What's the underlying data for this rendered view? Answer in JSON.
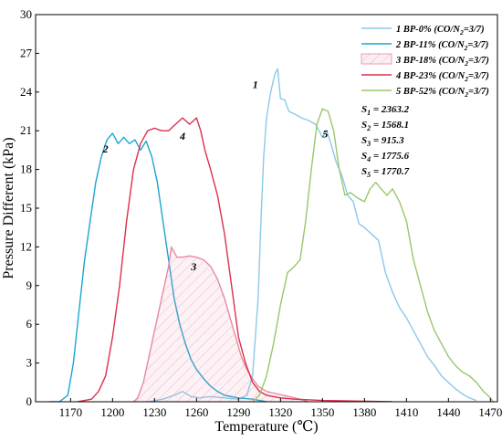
{
  "chart_data": {
    "type": "line",
    "xlabel": "Temperature (℃)",
    "ylabel": "Pressure Different (kPa)",
    "xlim": [
      1145,
      1475
    ],
    "ylim": [
      0,
      30
    ],
    "x_ticks": [
      1170,
      1200,
      1230,
      1260,
      1290,
      1320,
      1350,
      1380,
      1410,
      1440,
      1470
    ],
    "y_ticks": [
      0,
      3,
      6,
      9,
      12,
      15,
      18,
      21,
      24,
      27,
      30
    ],
    "grid": false,
    "legend_position": "top-right",
    "series": [
      {
        "name": "1 BP-0% (CO/N2=3/7)",
        "legend_label": "1 BP-0% (CO/N",
        "legend_sub": "2",
        "legend_suffix": "=3/7)",
        "peak_label": "1",
        "peak_label_at": [
          1302,
          24.3
        ],
        "color": "#8cc9e8",
        "filled": false,
        "points": [
          [
            1226,
            0
          ],
          [
            1236,
            0.2
          ],
          [
            1244,
            0.5
          ],
          [
            1250,
            0.8
          ],
          [
            1256,
            0.4
          ],
          [
            1262,
            0.3
          ],
          [
            1270,
            0.4
          ],
          [
            1280,
            0.3
          ],
          [
            1290,
            0.2
          ],
          [
            1296,
            0.5
          ],
          [
            1300,
            2
          ],
          [
            1304,
            8
          ],
          [
            1306,
            14
          ],
          [
            1308,
            19
          ],
          [
            1310,
            22
          ],
          [
            1313,
            24
          ],
          [
            1316,
            25.4
          ],
          [
            1318,
            25.8
          ],
          [
            1320,
            23.5
          ],
          [
            1323,
            23.4
          ],
          [
            1326,
            22.5
          ],
          [
            1330,
            22.3
          ],
          [
            1335,
            22
          ],
          [
            1340,
            21.8
          ],
          [
            1345,
            21.5
          ],
          [
            1350,
            20.5
          ],
          [
            1353,
            21
          ],
          [
            1356,
            20
          ],
          [
            1360,
            18.5
          ],
          [
            1364,
            17.5
          ],
          [
            1368,
            16
          ],
          [
            1372,
            15.5
          ],
          [
            1376,
            13.8
          ],
          [
            1380,
            13.5
          ],
          [
            1385,
            13
          ],
          [
            1390,
            12.5
          ],
          [
            1395,
            10
          ],
          [
            1400,
            8.5
          ],
          [
            1405,
            7.3
          ],
          [
            1410,
            6.5
          ],
          [
            1415,
            5.5
          ],
          [
            1420,
            4.5
          ],
          [
            1425,
            3.5
          ],
          [
            1430,
            2.8
          ],
          [
            1435,
            2
          ],
          [
            1440,
            1.5
          ],
          [
            1445,
            1
          ],
          [
            1450,
            0.6
          ],
          [
            1455,
            0.3
          ],
          [
            1460,
            0.1
          ]
        ]
      },
      {
        "name": "2 BP-11% (CO/N2=3/7)",
        "legend_label": "2 BP-11% (CO/N",
        "legend_sub": "2",
        "legend_suffix": "=3/7)",
        "peak_label": "2",
        "peak_label_at": [
          1195,
          19.3
        ],
        "color": "#1aa5d2",
        "filled": false,
        "points": [
          [
            1155,
            0
          ],
          [
            1162,
            0
          ],
          [
            1168,
            0.5
          ],
          [
            1172,
            3
          ],
          [
            1176,
            7
          ],
          [
            1180,
            11
          ],
          [
            1184,
            14
          ],
          [
            1188,
            17
          ],
          [
            1192,
            19
          ],
          [
            1196,
            20.3
          ],
          [
            1200,
            20.8
          ],
          [
            1204,
            20
          ],
          [
            1208,
            20.5
          ],
          [
            1212,
            20
          ],
          [
            1216,
            20.3
          ],
          [
            1220,
            19.5
          ],
          [
            1224,
            20.2
          ],
          [
            1228,
            19
          ],
          [
            1232,
            17
          ],
          [
            1236,
            14
          ],
          [
            1240,
            11
          ],
          [
            1244,
            8
          ],
          [
            1248,
            6
          ],
          [
            1252,
            4.5
          ],
          [
            1256,
            3.3
          ],
          [
            1260,
            2.5
          ],
          [
            1265,
            1.8
          ],
          [
            1270,
            1.2
          ],
          [
            1275,
            0.8
          ],
          [
            1280,
            0.5
          ],
          [
            1290,
            0.3
          ],
          [
            1300,
            0.2
          ],
          [
            1310,
            0
          ]
        ]
      },
      {
        "name": "3 BP-18% (CO/N2=3/7)",
        "legend_label": "3 BP-18% (CO/N",
        "legend_sub": "2",
        "legend_suffix": "=3/7)",
        "peak_label": "3",
        "peak_label_at": [
          1258,
          10.2
        ],
        "color": "#e68aa4",
        "filled": true,
        "points": [
          [
            1215,
            0
          ],
          [
            1218,
            0.3
          ],
          [
            1222,
            1.5
          ],
          [
            1226,
            3.5
          ],
          [
            1230,
            5.5
          ],
          [
            1235,
            8
          ],
          [
            1240,
            10.5
          ],
          [
            1242,
            12
          ],
          [
            1246,
            11.2
          ],
          [
            1250,
            11.2
          ],
          [
            1255,
            11.3
          ],
          [
            1260,
            11.2
          ],
          [
            1265,
            11
          ],
          [
            1270,
            10.5
          ],
          [
            1275,
            9.5
          ],
          [
            1280,
            8
          ],
          [
            1284,
            6.5
          ],
          [
            1288,
            5
          ],
          [
            1292,
            3.5
          ],
          [
            1296,
            2.5
          ],
          [
            1300,
            1.8
          ],
          [
            1304,
            1.2
          ],
          [
            1310,
            0.8
          ],
          [
            1318,
            0.6
          ],
          [
            1326,
            0.4
          ],
          [
            1334,
            0.2
          ],
          [
            1340,
            0
          ]
        ]
      },
      {
        "name": "4 BP-23% (CO/N2=3/7)",
        "legend_label": "4 BP-23% (CO/N",
        "legend_sub": "2",
        "legend_suffix": "=3/7)",
        "peak_label": "4",
        "peak_label_at": [
          1250,
          20.3
        ],
        "color": "#dd2f4c",
        "filled": false,
        "points": [
          [
            1175,
            0
          ],
          [
            1185,
            0.2
          ],
          [
            1190,
            0.8
          ],
          [
            1195,
            2
          ],
          [
            1200,
            5
          ],
          [
            1205,
            9
          ],
          [
            1210,
            14
          ],
          [
            1215,
            18
          ],
          [
            1220,
            20
          ],
          [
            1225,
            21
          ],
          [
            1230,
            21.2
          ],
          [
            1235,
            21
          ],
          [
            1240,
            21
          ],
          [
            1245,
            21.5
          ],
          [
            1250,
            22
          ],
          [
            1255,
            21.5
          ],
          [
            1260,
            22
          ],
          [
            1263,
            21
          ],
          [
            1266,
            19.5
          ],
          [
            1270,
            18
          ],
          [
            1275,
            16
          ],
          [
            1280,
            13
          ],
          [
            1285,
            9
          ],
          [
            1290,
            5
          ],
          [
            1295,
            3
          ],
          [
            1300,
            1.5
          ],
          [
            1305,
            0.8
          ],
          [
            1310,
            0.5
          ],
          [
            1320,
            0.3
          ],
          [
            1330,
            0.2
          ],
          [
            1350,
            0.1
          ],
          [
            1400,
            0
          ]
        ]
      },
      {
        "name": "5 BP-52% (CO/N2=3/7)",
        "legend_label": "5 BP-52% (CO/N",
        "legend_sub": "2",
        "legend_suffix": "=3/7)",
        "peak_label": "5",
        "peak_label_at": [
          1352,
          20.5
        ],
        "color": "#97c86a",
        "filled": false,
        "points": [
          [
            1300,
            0
          ],
          [
            1305,
            0.5
          ],
          [
            1310,
            2
          ],
          [
            1315,
            4.5
          ],
          [
            1320,
            7.5
          ],
          [
            1325,
            10
          ],
          [
            1330,
            10.5
          ],
          [
            1334,
            11
          ],
          [
            1338,
            14
          ],
          [
            1342,
            18
          ],
          [
            1346,
            21.5
          ],
          [
            1350,
            22.7
          ],
          [
            1354,
            22.5
          ],
          [
            1358,
            21
          ],
          [
            1362,
            18
          ],
          [
            1366,
            16
          ],
          [
            1370,
            16.2
          ],
          [
            1375,
            15.8
          ],
          [
            1380,
            15.5
          ],
          [
            1384,
            16.5
          ],
          [
            1388,
            17
          ],
          [
            1392,
            16.5
          ],
          [
            1396,
            16
          ],
          [
            1400,
            16.5
          ],
          [
            1405,
            15.5
          ],
          [
            1410,
            14
          ],
          [
            1415,
            11
          ],
          [
            1420,
            9
          ],
          [
            1425,
            7
          ],
          [
            1430,
            5.5
          ],
          [
            1435,
            4.5
          ],
          [
            1440,
            3.5
          ],
          [
            1445,
            2.8
          ],
          [
            1450,
            2.3
          ],
          [
            1455,
            2
          ],
          [
            1460,
            1.5
          ],
          [
            1465,
            0.8
          ],
          [
            1470,
            0.3
          ],
          [
            1472,
            0
          ]
        ]
      }
    ],
    "annotations": [
      {
        "label": "S",
        "sub": "1",
        "value": "= 2363.2"
      },
      {
        "label": "S",
        "sub": "2",
        "value": "= 1568.1"
      },
      {
        "label": "S",
        "sub": "3",
        "value": "= 915.3"
      },
      {
        "label": "S",
        "sub": "4",
        "value": "= 1775.6"
      },
      {
        "label": "S",
        "sub": "5",
        "value": "= 1770.7"
      }
    ]
  }
}
